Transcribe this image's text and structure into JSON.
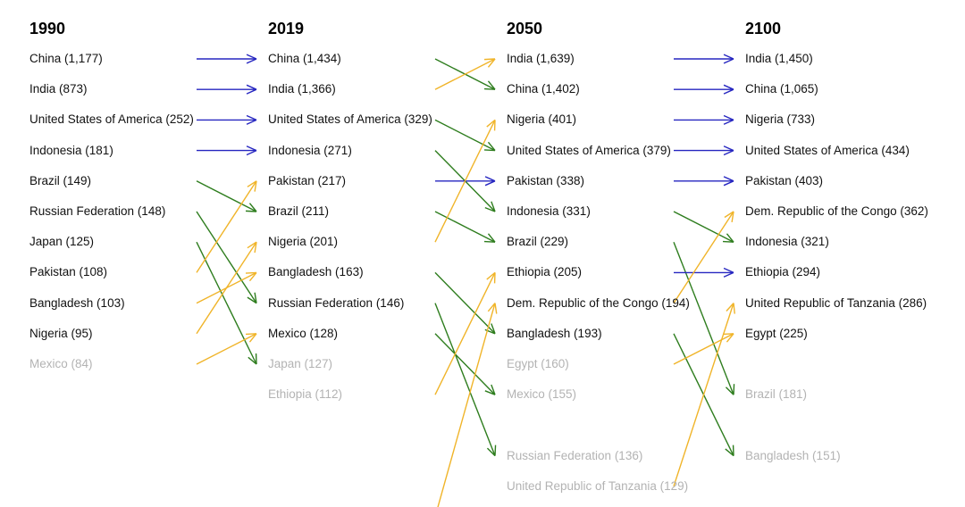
{
  "chart_data": {
    "type": "bump",
    "colors": {
      "same": "#2626c0",
      "up": "#f0b429",
      "down": "#2e7d1e",
      "muted_text": "#b3b3b3"
    },
    "columns": [
      {
        "year": "1990",
        "entries": [
          {
            "label": "China (1,177)",
            "country": "China",
            "value": 1177,
            "rank": 1,
            "muted": false
          },
          {
            "label": "India (873)",
            "country": "India",
            "value": 873,
            "rank": 2,
            "muted": false
          },
          {
            "label": "United States of America (252)",
            "country": "United States of America",
            "value": 252,
            "rank": 3,
            "muted": false
          },
          {
            "label": "Indonesia (181)",
            "country": "Indonesia",
            "value": 181,
            "rank": 4,
            "muted": false
          },
          {
            "label": "Brazil (149)",
            "country": "Brazil",
            "value": 149,
            "rank": 5,
            "muted": false
          },
          {
            "label": "Russian Federation (148)",
            "country": "Russian Federation",
            "value": 148,
            "rank": 6,
            "muted": false
          },
          {
            "label": "Japan (125)",
            "country": "Japan",
            "value": 125,
            "rank": 7,
            "muted": false
          },
          {
            "label": "Pakistan (108)",
            "country": "Pakistan",
            "value": 108,
            "rank": 8,
            "muted": false
          },
          {
            "label": "Bangladesh (103)",
            "country": "Bangladesh",
            "value": 103,
            "rank": 9,
            "muted": false
          },
          {
            "label": "Nigeria (95)",
            "country": "Nigeria",
            "value": 95,
            "rank": 10,
            "muted": false
          },
          {
            "label": "Mexico (84)",
            "country": "Mexico",
            "value": 84,
            "rank": 11,
            "muted": true
          }
        ]
      },
      {
        "year": "2019",
        "entries": [
          {
            "label": "China (1,434)",
            "country": "China",
            "value": 1434,
            "rank": 1,
            "muted": false
          },
          {
            "label": "India (1,366)",
            "country": "India",
            "value": 1366,
            "rank": 2,
            "muted": false
          },
          {
            "label": "United States of America (329)",
            "country": "United States of America",
            "value": 329,
            "rank": 3,
            "muted": false
          },
          {
            "label": "Indonesia (271)",
            "country": "Indonesia",
            "value": 271,
            "rank": 4,
            "muted": false
          },
          {
            "label": "Pakistan (217)",
            "country": "Pakistan",
            "value": 217,
            "rank": 5,
            "muted": false
          },
          {
            "label": "Brazil (211)",
            "country": "Brazil",
            "value": 211,
            "rank": 6,
            "muted": false
          },
          {
            "label": "Nigeria (201)",
            "country": "Nigeria",
            "value": 201,
            "rank": 7,
            "muted": false
          },
          {
            "label": "Bangladesh (163)",
            "country": "Bangladesh",
            "value": 163,
            "rank": 8,
            "muted": false
          },
          {
            "label": "Russian Federation (146)",
            "country": "Russian Federation",
            "value": 146,
            "rank": 9,
            "muted": false
          },
          {
            "label": "Mexico (128)",
            "country": "Mexico",
            "value": 128,
            "rank": 10,
            "muted": false
          },
          {
            "label": "Japan (127)",
            "country": "Japan",
            "value": 127,
            "rank": 11,
            "muted": true
          },
          {
            "label": "Ethiopia (112)",
            "country": "Ethiopia",
            "value": 112,
            "rank": 12,
            "muted": true
          }
        ]
      },
      {
        "year": "2050",
        "entries": [
          {
            "label": "India (1,639)",
            "country": "India",
            "value": 1639,
            "rank": 1,
            "muted": false
          },
          {
            "label": "China (1,402)",
            "country": "China",
            "value": 1402,
            "rank": 2,
            "muted": false
          },
          {
            "label": "Nigeria (401)",
            "country": "Nigeria",
            "value": 401,
            "rank": 3,
            "muted": false
          },
          {
            "label": "United States of America (379)",
            "country": "United States of America",
            "value": 379,
            "rank": 4,
            "muted": false
          },
          {
            "label": "Pakistan (338)",
            "country": "Pakistan",
            "value": 338,
            "rank": 5,
            "muted": false
          },
          {
            "label": "Indonesia (331)",
            "country": "Indonesia",
            "value": 331,
            "rank": 6,
            "muted": false
          },
          {
            "label": "Brazil (229)",
            "country": "Brazil",
            "value": 229,
            "rank": 7,
            "muted": false
          },
          {
            "label": "Ethiopia (205)",
            "country": "Ethiopia",
            "value": 205,
            "rank": 8,
            "muted": false
          },
          {
            "label": "Dem. Republic of the Congo (194)",
            "country": "Dem. Republic of the Congo",
            "value": 194,
            "rank": 9,
            "muted": false
          },
          {
            "label": "Bangladesh (193)",
            "country": "Bangladesh",
            "value": 193,
            "rank": 10,
            "muted": false
          },
          {
            "label": "Egypt (160)",
            "country": "Egypt",
            "value": 160,
            "rank": 11,
            "muted": true
          },
          {
            "label": "Mexico (155)",
            "country": "Mexico",
            "value": 155,
            "rank": 12,
            "muted": true
          },
          {
            "label": "Russian Federation (136)",
            "country": "Russian Federation",
            "value": 136,
            "rank": 14,
            "muted": true
          },
          {
            "label": "United Republic of Tanzania (129)",
            "country": "United Republic of Tanzania",
            "value": 129,
            "rank": 15,
            "muted": true
          }
        ]
      },
      {
        "year": "2100",
        "entries": [
          {
            "label": "India (1,450)",
            "country": "India",
            "value": 1450,
            "rank": 1,
            "muted": false
          },
          {
            "label": "China (1,065)",
            "country": "China",
            "value": 1065,
            "rank": 2,
            "muted": false
          },
          {
            "label": "Nigeria (733)",
            "country": "Nigeria",
            "value": 733,
            "rank": 3,
            "muted": false
          },
          {
            "label": "United States of America (434)",
            "country": "United States of America",
            "value": 434,
            "rank": 4,
            "muted": false
          },
          {
            "label": "Pakistan (403)",
            "country": "Pakistan",
            "value": 403,
            "rank": 5,
            "muted": false
          },
          {
            "label": "Dem. Republic of the Congo (362)",
            "country": "Dem. Republic of the Congo",
            "value": 362,
            "rank": 6,
            "muted": false
          },
          {
            "label": "Indonesia (321)",
            "country": "Indonesia",
            "value": 321,
            "rank": 7,
            "muted": false
          },
          {
            "label": "Ethiopia (294)",
            "country": "Ethiopia",
            "value": 294,
            "rank": 8,
            "muted": false
          },
          {
            "label": "United Republic of Tanzania (286)",
            "country": "United Republic of Tanzania",
            "value": 286,
            "rank": 9,
            "muted": false
          },
          {
            "label": "Egypt (225)",
            "country": "Egypt",
            "value": 225,
            "rank": 10,
            "muted": false
          },
          {
            "label": "Brazil (181)",
            "country": "Brazil",
            "value": 181,
            "rank": 12,
            "muted": true
          },
          {
            "label": "Bangladesh (151)",
            "country": "Bangladesh",
            "value": 151,
            "rank": 14,
            "muted": true
          }
        ]
      }
    ],
    "transitions": [
      {
        "from": "1990",
        "to": "2019",
        "links": [
          {
            "from_rank": 1,
            "to_rank": 1,
            "kind": "same"
          },
          {
            "from_rank": 2,
            "to_rank": 2,
            "kind": "same"
          },
          {
            "from_rank": 3,
            "to_rank": 3,
            "kind": "same"
          },
          {
            "from_rank": 4,
            "to_rank": 4,
            "kind": "same"
          },
          {
            "from_rank": 5,
            "to_rank": 6,
            "kind": "down"
          },
          {
            "from_rank": 6,
            "to_rank": 9,
            "kind": "down"
          },
          {
            "from_rank": 7,
            "to_rank": 11,
            "kind": "down"
          },
          {
            "from_rank": 8,
            "to_rank": 5,
            "kind": "up"
          },
          {
            "from_rank": 9,
            "to_rank": 8,
            "kind": "up"
          },
          {
            "from_rank": 10,
            "to_rank": 7,
            "kind": "up"
          },
          {
            "from_rank": 11,
            "to_rank": 10,
            "kind": "up"
          }
        ]
      },
      {
        "from": "2019",
        "to": "2050",
        "links": [
          {
            "from_rank": 1,
            "to_rank": 2,
            "kind": "down"
          },
          {
            "from_rank": 2,
            "to_rank": 1,
            "kind": "up"
          },
          {
            "from_rank": 3,
            "to_rank": 4,
            "kind": "down"
          },
          {
            "from_rank": 4,
            "to_rank": 6,
            "kind": "down"
          },
          {
            "from_rank": 5,
            "to_rank": 5,
            "kind": "same"
          },
          {
            "from_rank": 6,
            "to_rank": 7,
            "kind": "down"
          },
          {
            "from_rank": 7,
            "to_rank": 3,
            "kind": "up"
          },
          {
            "from_rank": 8,
            "to_rank": 10,
            "kind": "down"
          },
          {
            "from_rank": 9,
            "to_rank": 14,
            "kind": "down"
          },
          {
            "from_rank": 10,
            "to_rank": 12,
            "kind": "down"
          },
          {
            "from_rank": 12,
            "to_rank": 8,
            "kind": "up"
          },
          {
            "from_rank": 16,
            "to_rank": 9,
            "kind": "up"
          }
        ]
      },
      {
        "from": "2050",
        "to": "2100",
        "links": [
          {
            "from_rank": 1,
            "to_rank": 1,
            "kind": "same"
          },
          {
            "from_rank": 2,
            "to_rank": 2,
            "kind": "same"
          },
          {
            "from_rank": 3,
            "to_rank": 3,
            "kind": "same"
          },
          {
            "from_rank": 4,
            "to_rank": 4,
            "kind": "same"
          },
          {
            "from_rank": 5,
            "to_rank": 5,
            "kind": "same"
          },
          {
            "from_rank": 6,
            "to_rank": 7,
            "kind": "down"
          },
          {
            "from_rank": 7,
            "to_rank": 12,
            "kind": "down"
          },
          {
            "from_rank": 8,
            "to_rank": 8,
            "kind": "same"
          },
          {
            "from_rank": 9,
            "to_rank": 6,
            "kind": "up"
          },
          {
            "from_rank": 10,
            "to_rank": 14,
            "kind": "down"
          },
          {
            "from_rank": 11,
            "to_rank": 10,
            "kind": "up"
          },
          {
            "from_rank": 15,
            "to_rank": 9,
            "kind": "up"
          }
        ]
      }
    ]
  }
}
